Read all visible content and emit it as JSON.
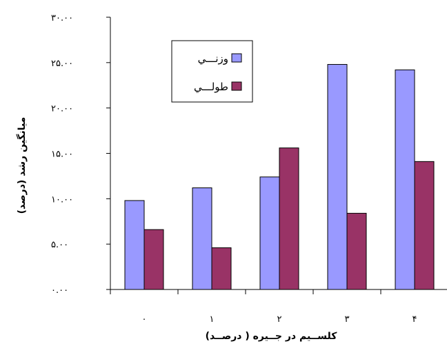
{
  "chart_data": {
    "type": "bar",
    "title": "",
    "xlabel": "کلســیم در جــیره ( درصــد)",
    "ylabel": "میانگین رشد (درصد)",
    "categories": [
      "۰",
      "۱",
      "۲",
      "۳",
      "۴"
    ],
    "ylim": [
      0,
      30
    ],
    "yticks": [
      0,
      5,
      10,
      15,
      20,
      25,
      30
    ],
    "ytick_labels": [
      "۰.۰۰",
      "۵.۰۰",
      "۱۰.۰۰",
      "۱۵.۰۰",
      "۲۰.۰۰",
      "۲۵.۰۰",
      "۳۰.۰۰"
    ],
    "grid": false,
    "legend_position": "top-left",
    "series": [
      {
        "name": "وزنـــي",
        "color": "#9999ff",
        "values": [
          9.8,
          11.2,
          12.4,
          24.8,
          24.2
        ]
      },
      {
        "name": "طولـــي",
        "color": "#993366",
        "values": [
          6.6,
          4.6,
          15.6,
          8.4,
          14.1
        ]
      }
    ]
  }
}
